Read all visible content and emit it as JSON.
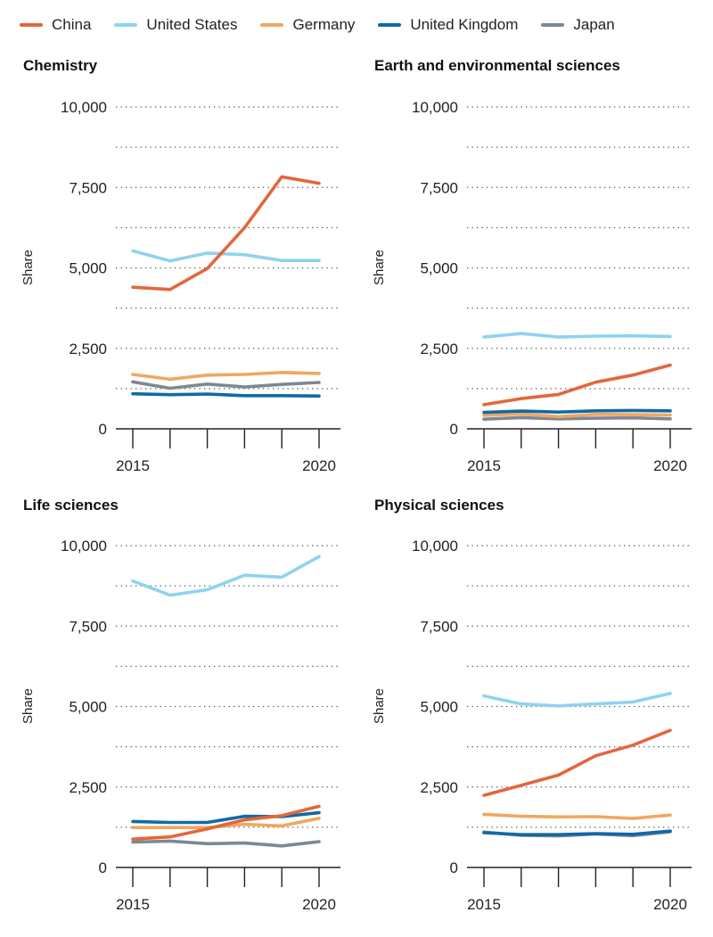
{
  "legend": [
    {
      "name": "China",
      "color": "#e2673c"
    },
    {
      "name": "United States",
      "color": "#8fd3ef"
    },
    {
      "name": "Germany",
      "color": "#f0a762"
    },
    {
      "name": "United Kingdom",
      "color": "#0f6aa6"
    },
    {
      "name": "Japan",
      "color": "#7e8894"
    }
  ],
  "chart_data": [
    {
      "type": "line",
      "title": "Chemistry",
      "ylabel": "Share",
      "xlabel": "",
      "x": [
        2015,
        2016,
        2017,
        2018,
        2019,
        2020
      ],
      "ylim": [
        0,
        10000
      ],
      "yticks": [
        0,
        2500,
        5000,
        7500,
        10000
      ],
      "ytick_labels": [
        "0",
        "2,500",
        "5,000",
        "7,500",
        "10,000"
      ],
      "xtick_labels": [
        "2015",
        "2020"
      ],
      "series": [
        {
          "name": "China",
          "values": [
            4400,
            4330,
            4980,
            6250,
            7830,
            7630
          ]
        },
        {
          "name": "United States",
          "values": [
            5530,
            5220,
            5460,
            5410,
            5230,
            5230
          ]
        },
        {
          "name": "Germany",
          "values": [
            1690,
            1540,
            1670,
            1690,
            1750,
            1720
          ]
        },
        {
          "name": "United Kingdom",
          "values": [
            1090,
            1060,
            1080,
            1030,
            1030,
            1020
          ]
        },
        {
          "name": "Japan",
          "values": [
            1460,
            1260,
            1390,
            1300,
            1380,
            1440
          ]
        }
      ]
    },
    {
      "type": "line",
      "title": "Earth and environmental sciences",
      "ylabel": "Share",
      "xlabel": "",
      "x": [
        2015,
        2016,
        2017,
        2018,
        2019,
        2020
      ],
      "ylim": [
        0,
        10000
      ],
      "yticks": [
        0,
        2500,
        5000,
        7500,
        10000
      ],
      "ytick_labels": [
        "0",
        "2,500",
        "5,000",
        "7,500",
        "10,000"
      ],
      "xtick_labels": [
        "2015",
        "2020"
      ],
      "series": [
        {
          "name": "China",
          "values": [
            750,
            940,
            1070,
            1450,
            1670,
            1980
          ]
        },
        {
          "name": "United States",
          "values": [
            2850,
            2960,
            2850,
            2880,
            2890,
            2870
          ]
        },
        {
          "name": "Germany",
          "values": [
            420,
            460,
            380,
            450,
            440,
            430
          ]
        },
        {
          "name": "United Kingdom",
          "values": [
            510,
            550,
            520,
            560,
            570,
            560
          ]
        },
        {
          "name": "Japan",
          "values": [
            300,
            350,
            310,
            330,
            340,
            310
          ]
        }
      ]
    },
    {
      "type": "line",
      "title": "Life sciences",
      "ylabel": "Share",
      "xlabel": "",
      "x": [
        2015,
        2016,
        2017,
        2018,
        2019,
        2020
      ],
      "ylim": [
        0,
        10000
      ],
      "yticks": [
        0,
        2500,
        5000,
        7500,
        10000
      ],
      "ytick_labels": [
        "0",
        "2,500",
        "5,000",
        "7,500",
        "10,000"
      ],
      "xtick_labels": [
        "2015",
        "2020"
      ],
      "series": [
        {
          "name": "China",
          "values": [
            880,
            950,
            1200,
            1480,
            1610,
            1900
          ]
        },
        {
          "name": "United States",
          "values": [
            8900,
            8460,
            8630,
            9080,
            9020,
            9660
          ]
        },
        {
          "name": "Germany",
          "values": [
            1240,
            1240,
            1240,
            1340,
            1290,
            1530
          ]
        },
        {
          "name": "United Kingdom",
          "values": [
            1430,
            1400,
            1400,
            1590,
            1580,
            1700
          ]
        },
        {
          "name": "Japan",
          "values": [
            790,
            820,
            740,
            760,
            670,
            800
          ]
        }
      ]
    },
    {
      "type": "line",
      "title": "Physical sciences",
      "ylabel": "Share",
      "xlabel": "",
      "x": [
        2015,
        2016,
        2017,
        2018,
        2019,
        2020
      ],
      "ylim": [
        0,
        10000
      ],
      "yticks": [
        0,
        2500,
        5000,
        7500,
        10000
      ],
      "ytick_labels": [
        "0",
        "2,500",
        "5,000",
        "7,500",
        "10,000"
      ],
      "xtick_labels": [
        "2015",
        "2020"
      ],
      "series": [
        {
          "name": "China",
          "values": [
            2240,
            2550,
            2870,
            3470,
            3800,
            4260
          ]
        },
        {
          "name": "United States",
          "values": [
            5330,
            5080,
            5020,
            5080,
            5140,
            5410
          ]
        },
        {
          "name": "Germany",
          "values": [
            1650,
            1590,
            1570,
            1580,
            1520,
            1630
          ]
        },
        {
          "name": "United Kingdom",
          "values": [
            1080,
            1020,
            1020,
            1050,
            1030,
            1130
          ]
        },
        {
          "name": "Japan",
          "values": [
            1100,
            1000,
            980,
            1040,
            990,
            1110
          ]
        }
      ]
    }
  ]
}
